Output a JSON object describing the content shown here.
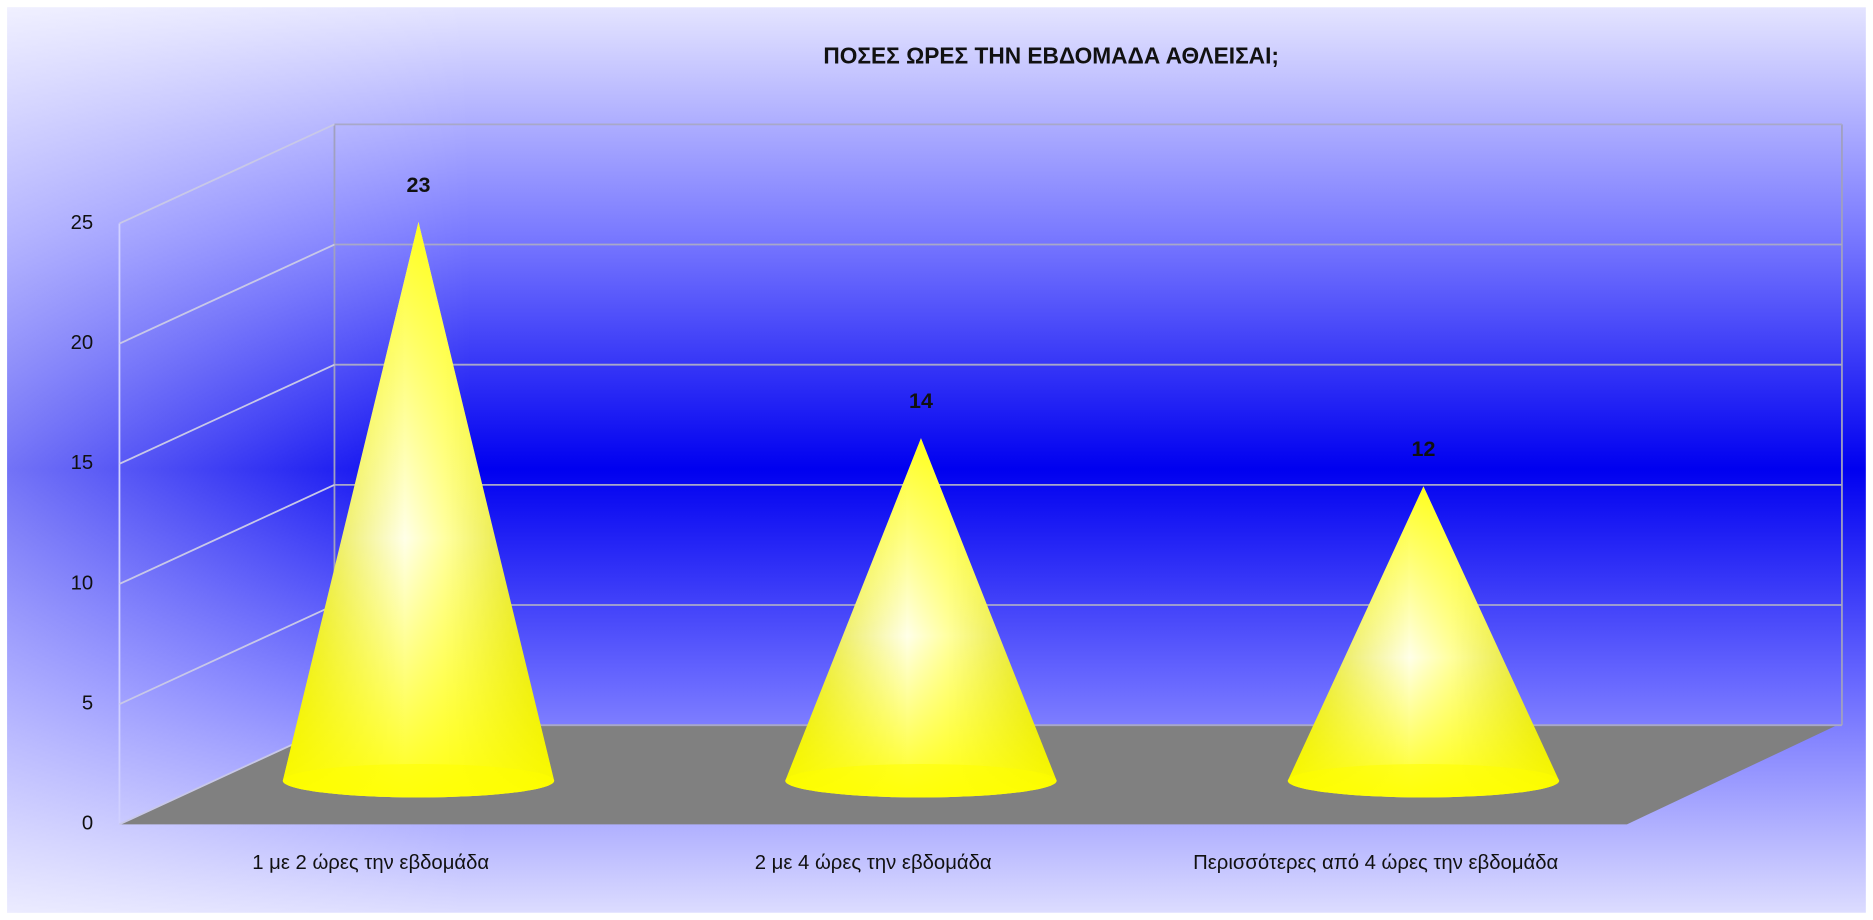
{
  "chart_data": {
    "type": "cone",
    "title": "ΠΟΣΕΣ ΩΡΕΣ ΤΗΝ ΕΒΔΟΜΑΔΑ ΑΘΛΕΙΣΑΙ;",
    "categories": [
      "1 με 2 ώρες την εβδομάδα",
      "2 με 4 ώρες την εβδομάδα",
      "Περισσότερες από 4 ώρες την εβδομάδα"
    ],
    "values": [
      23,
      14,
      12
    ],
    "color": "#ffff00",
    "ylim": [
      0,
      25
    ],
    "yticks": [
      0,
      5,
      10,
      15,
      20,
      25
    ],
    "grid": true
  }
}
